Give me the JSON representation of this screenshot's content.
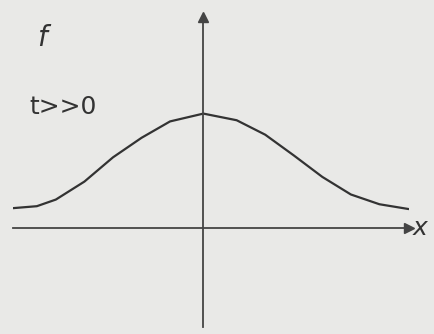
{
  "chart_data": {
    "type": "line",
    "annotation": "t>>0",
    "x_label": "x",
    "y_label": "f",
    "x": [
      -5,
      -4.375,
      -3.875,
      -3.125,
      -2.375,
      -1.625,
      -0.875,
      0,
      0.875,
      1.625,
      2.375,
      3.125,
      3.875,
      4.625,
      5.375
    ],
    "values": [
      0.5,
      0.55,
      0.72,
      1.18,
      1.8,
      2.3,
      2.72,
      2.92,
      2.75,
      2.38,
      1.85,
      1.3,
      0.85,
      0.6,
      0.48
    ],
    "color": "#333333",
    "xlim": [
      -5,
      5.4
    ],
    "ylim": [
      -2.55,
      5.4
    ],
    "xticks": [],
    "yticks": [],
    "tick_labels": false,
    "grid": false
  }
}
